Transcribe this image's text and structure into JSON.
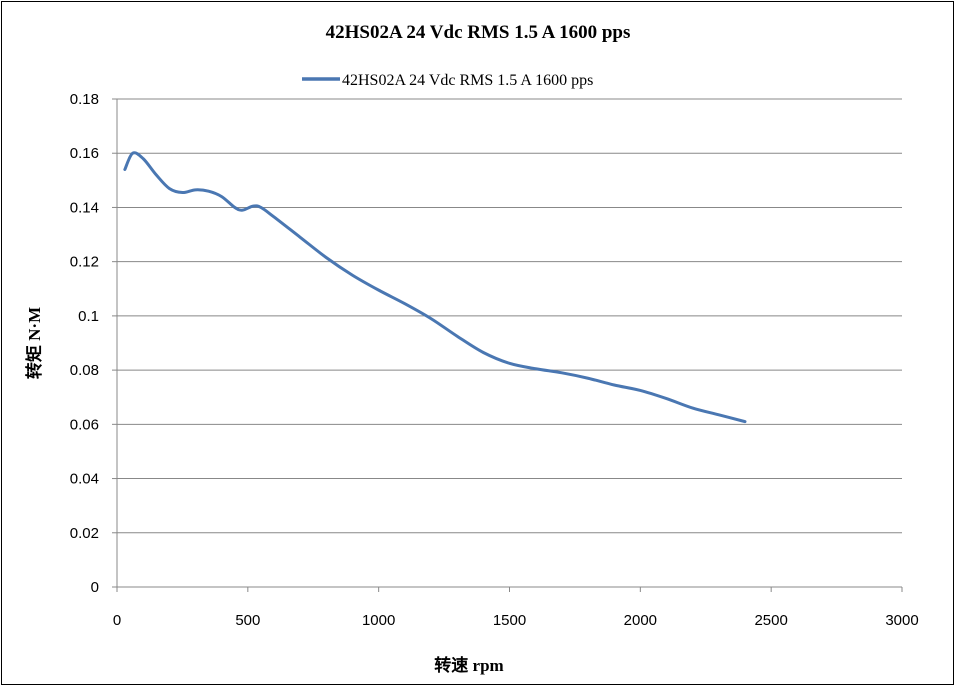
{
  "chart_data": {
    "type": "line",
    "title": "42HS02A  24 Vdc  RMS 1.5 A  1600 pps",
    "xlabel": "转速 rpm",
    "ylabel": "转矩 N·M",
    "xlim": [
      0,
      3000
    ],
    "ylim": [
      0,
      0.18
    ],
    "xticks": [
      0,
      500,
      1000,
      1500,
      2000,
      2500,
      3000
    ],
    "yticks": [
      0,
      0.02,
      0.04,
      0.06,
      0.08,
      0.1,
      0.12,
      0.14,
      0.16,
      0.18
    ],
    "ytick_labels": [
      "0",
      "0.02",
      "0.04",
      "0.06",
      "0.08",
      "0.1",
      "0.12",
      "0.14",
      "0.16",
      "0.18"
    ],
    "xtick_labels": [
      "0",
      "500",
      "1000",
      "1500",
      "2000",
      "2500",
      "3000"
    ],
    "grid": "horizontal",
    "legend_position": "top-center",
    "series": [
      {
        "name": "42HS02A  24 Vdc  RMS 1.5 A  1600 pps",
        "color": "#4a77b2",
        "x": [
          30,
          60,
          100,
          150,
          200,
          250,
          300,
          350,
          400,
          450,
          480,
          520,
          550,
          600,
          700,
          800,
          900,
          1000,
          1100,
          1200,
          1300,
          1400,
          1500,
          1600,
          1700,
          1800,
          1900,
          2000,
          2100,
          2200,
          2300,
          2400
        ],
        "y": [
          0.154,
          0.16,
          0.158,
          0.152,
          0.147,
          0.1455,
          0.1465,
          0.146,
          0.144,
          0.14,
          0.139,
          0.1405,
          0.14,
          0.1365,
          0.129,
          0.1215,
          0.115,
          0.1095,
          0.1045,
          0.099,
          0.0925,
          0.0865,
          0.0825,
          0.0805,
          0.079,
          0.077,
          0.0745,
          0.0725,
          0.0695,
          0.066,
          0.0635,
          0.061
        ]
      }
    ]
  }
}
